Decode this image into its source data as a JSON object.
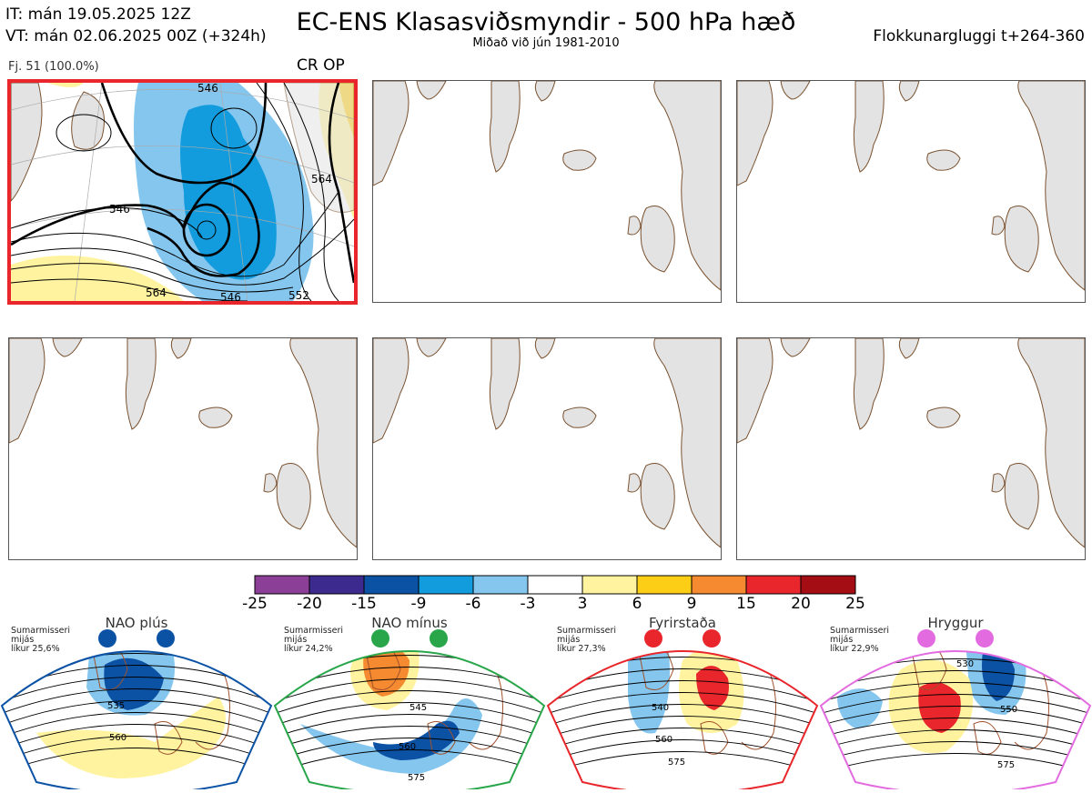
{
  "header": {
    "it_line": "IT: mán 19.05.2025 12Z",
    "vt_line": "VT: mán 02.06.2025 00Z  (+324h)",
    "title": "EC-ENS Klasasviðsmyndir - 500 hPa hæð",
    "subtitle": "Miðað við jún 1981-2010",
    "window": "Flokkunargluggi t+264-360"
  },
  "main_panel": {
    "member_label": "Fj. 51 (100.0%)",
    "regime_label": "CR OP",
    "highlight_color": "#e8262b",
    "contour_labels": [
      "546",
      "546",
      "564",
      "564",
      "546",
      "552"
    ]
  },
  "colorbar": {
    "ticks": [
      "-25",
      "-20",
      "-15",
      "-9",
      "-6",
      "-3",
      "3",
      "6",
      "9",
      "15",
      "20",
      "25"
    ],
    "colors": [
      "#8b3f96",
      "#3d2a8f",
      "#0b52a5",
      "#129bdd",
      "#85c6ee",
      "#ffffff",
      "#fff3a0",
      "#fccf16",
      "#f58a30",
      "#e8262b",
      "#a50d15"
    ]
  },
  "regimes": [
    {
      "name": "NAO plús",
      "info": [
        "Sumarmisseri",
        "mijás",
        "líkur 25,6%"
      ],
      "color": "#0b52a5",
      "labels": [
        "535",
        "560"
      ]
    },
    {
      "name": "NAO mínus",
      "info": [
        "Sumarmisseri",
        "mijás",
        "líkur 24,2%"
      ],
      "color": "#29a64a",
      "labels": [
        "545",
        "560",
        "575"
      ]
    },
    {
      "name": "Fyrirstaða",
      "info": [
        "Sumarmisseri",
        "mijás",
        "líkur 27,3%"
      ],
      "color": "#e8262b",
      "labels": [
        "540",
        "560",
        "575"
      ]
    },
    {
      "name": "Hryggur",
      "info": [
        "Sumarmisseri",
        "mijás",
        "líkur 22,9%"
      ],
      "color": "#e36be0",
      "labels": [
        "530",
        "550",
        "575"
      ]
    }
  ]
}
